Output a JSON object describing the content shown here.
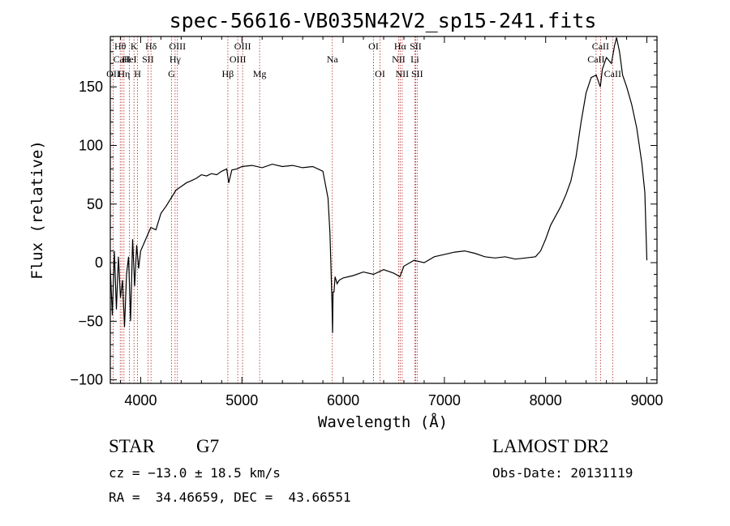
{
  "title": "spec-56616-VB035N42V2_sp15-241.fits",
  "footer": {
    "class_label": "STAR",
    "subclass": "G7",
    "survey": "LAMOST DR2",
    "cz": "cz = −13.0 ± 18.5 km/s",
    "obs_date": "Obs-Date: 20131119",
    "coords": "RA =  34.46659, DEC =  43.66551"
  },
  "chart_data": {
    "type": "line",
    "title": "spec-56616-VB035N42V2_sp15-241.fits",
    "xlabel": "Wavelength (Å)",
    "ylabel": "Flux (relative)",
    "xlim": [
      3700,
      9100
    ],
    "ylim": [
      -103,
      193
    ],
    "xticks": [
      4000,
      5000,
      6000,
      7000,
      8000,
      9000
    ],
    "yticks": [
      -100,
      -50,
      0,
      50,
      100,
      150
    ],
    "ytick_labels": [
      "−100",
      "−50",
      "0",
      "50",
      "100",
      "150"
    ],
    "grid": false,
    "series": [
      {
        "x": [
          3700,
          3720,
          3740,
          3760,
          3780,
          3800,
          3820,
          3840,
          3860,
          3880,
          3900,
          3920,
          3940,
          3960,
          3980,
          4000,
          4050,
          4100,
          4150,
          4200,
          4250,
          4300,
          4350,
          4400,
          4450,
          4500,
          4550,
          4600,
          4650,
          4700,
          4750,
          4800,
          4850,
          4870,
          4900,
          4950,
          5000,
          5100,
          5200,
          5300,
          5400,
          5500,
          5600,
          5700,
          5800,
          5850,
          5870,
          5880,
          5890,
          5895,
          5900,
          5910,
          5920,
          5940,
          5960,
          6000,
          6100,
          6200,
          6300,
          6400,
          6500,
          6560,
          6600,
          6700,
          6800,
          6900,
          7000,
          7100,
          7200,
          7300,
          7400,
          7500,
          7600,
          7700,
          7800,
          7900,
          7950,
          8000,
          8050,
          8100,
          8150,
          8200,
          8250,
          8300,
          8350,
          8400,
          8450,
          8500,
          8540,
          8560,
          8600,
          8650,
          8680,
          8700,
          8730,
          8760,
          8800,
          8850,
          8900,
          8950,
          8980,
          9000
        ],
        "y": [
          -5,
          -45,
          10,
          -40,
          5,
          -30,
          -15,
          -55,
          -10,
          5,
          -50,
          20,
          -20,
          15,
          -5,
          10,
          20,
          30,
          28,
          42,
          48,
          55,
          62,
          65,
          68,
          70,
          72,
          75,
          74,
          76,
          75,
          78,
          80,
          68,
          79,
          80,
          82,
          83,
          81,
          84,
          82,
          83,
          81,
          82,
          78,
          55,
          25,
          -5,
          -35,
          -60,
          -25,
          -25,
          -12,
          -18,
          -15,
          -13,
          -11,
          -8,
          -10,
          -6,
          -9,
          -12,
          -3,
          2,
          0,
          5,
          7,
          9,
          10,
          8,
          5,
          4,
          5,
          3,
          4,
          5,
          10,
          20,
          32,
          40,
          48,
          58,
          70,
          90,
          120,
          145,
          158,
          160,
          150,
          165,
          175,
          170,
          185,
          192,
          180,
          160,
          150,
          135,
          115,
          85,
          60,
          2
        ]
      }
    ],
    "emission_lines": [
      {
        "label": "Hθ",
        "wavelength": 3798,
        "row": 0
      },
      {
        "label": "CaII",
        "wavelength": 3814,
        "row": 1
      },
      {
        "label": "OII",
        "wavelength": 3728,
        "row": 2
      },
      {
        "label": "K",
        "wavelength": 3934,
        "row": 0
      },
      {
        "label": "HeI",
        "wavelength": 3889,
        "row": 1
      },
      {
        "label": "Hη",
        "wavelength": 3835,
        "row": 2
      },
      {
        "label": "H",
        "wavelength": 3969,
        "row": 2
      },
      {
        "label": "Hδ",
        "wavelength": 4102,
        "row": 0
      },
      {
        "label": "SII",
        "wavelength": 4072,
        "row": 1
      },
      {
        "label": "OIII",
        "wavelength": 4363,
        "row": 0
      },
      {
        "label": "Hγ",
        "wavelength": 4340,
        "row": 1
      },
      {
        "label": "G",
        "wavelength": 4305,
        "row": 2
      },
      {
        "label": "Hβ",
        "wavelength": 4861,
        "row": 2
      },
      {
        "label": "OIII",
        "wavelength": 5007,
        "row": 0
      },
      {
        "label": "OIII",
        "wavelength": 4959,
        "row": 1
      },
      {
        "label": "Mg",
        "wavelength": 5175,
        "row": 2
      },
      {
        "label": "Na",
        "wavelength": 5893,
        "row": 1
      },
      {
        "label": "OI",
        "wavelength": 6300,
        "row": 0
      },
      {
        "label": "OI",
        "wavelength": 6364,
        "row": 2
      },
      {
        "label": "Hα",
        "wavelength": 6563,
        "row": 0
      },
      {
        "label": "SII",
        "wavelength": 6716,
        "row": 0
      },
      {
        "label": "NII",
        "wavelength": 6548,
        "row": 1
      },
      {
        "label": "Li",
        "wavelength": 6708,
        "row": 1
      },
      {
        "label": "NII",
        "wavelength": 6583,
        "row": 2
      },
      {
        "label": "SII",
        "wavelength": 6731,
        "row": 2
      },
      {
        "label": "CaII",
        "wavelength": 8542,
        "row": 0
      },
      {
        "label": "CaII",
        "wavelength": 8498,
        "row": 1
      },
      {
        "label": "CaII",
        "wavelength": 8662,
        "row": 2
      }
    ]
  }
}
